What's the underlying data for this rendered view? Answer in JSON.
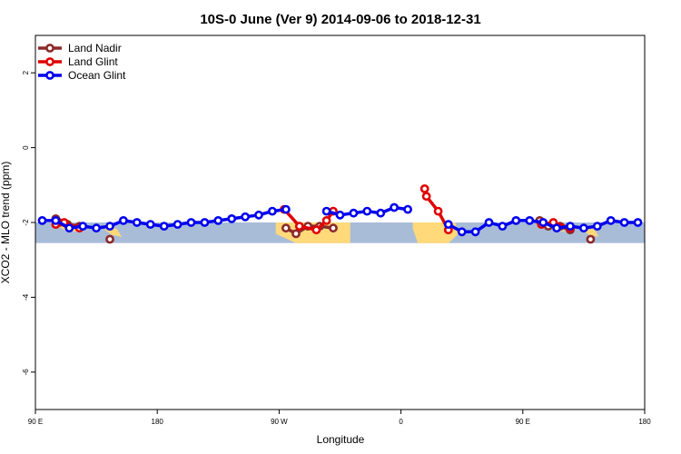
{
  "chart_data": {
    "type": "line",
    "title": "10S-0 June (Ver 9)   2014-09-06 to 2018-12-31",
    "xlabel": "Longitude",
    "ylabel": "XCO2 - MLO trend (ppm)",
    "xlim": [
      90,
      450
    ],
    "ylim": [
      -7,
      3
    ],
    "x_ticks": [
      {
        "value": 90,
        "label": "90 E"
      },
      {
        "value": 162,
        "label": "180"
      },
      {
        "value": 234,
        "label": "90 W"
      },
      {
        "value": 306,
        "label": "0"
      },
      {
        "value": 378,
        "label": "90 E"
      },
      {
        "value": 450,
        "label": "180"
      }
    ],
    "y_ticks": [
      {
        "value": 2,
        "label": "2"
      },
      {
        "value": 0,
        "label": "0"
      },
      {
        "value": -2,
        "label": "-2"
      },
      {
        "value": -4,
        "label": "-4"
      },
      {
        "value": -6,
        "label": "-6"
      }
    ],
    "legend_position": "top-left",
    "grid": false,
    "background_band": {
      "ymin": -2.55,
      "ymax": -2.0,
      "ocean_color": "#a8bcd8",
      "land_color": "#ffd97a"
    },
    "series": [
      {
        "name": "Land Nadir",
        "color": "#8b2a2a",
        "segments": [
          [
            [
              102,
              -1.9
            ],
            [
              104,
              -2.0
            ],
            [
              109,
              -2.05
            ],
            [
              116,
              -2.1
            ]
          ],
          [
            [
              134,
              -2.45
            ]
          ],
          [
            [
              238,
              -2.15
            ],
            [
              244,
              -2.3
            ],
            [
              251,
              -2.1
            ],
            [
              258,
              -2.1
            ],
            [
              266,
              -2.15
            ]
          ],
          [
            [
              388,
              -1.95
            ],
            [
              393,
              -2.1
            ],
            [
              400,
              -2.1
            ],
            [
              406,
              -2.2
            ]
          ],
          [
            [
              418,
              -2.45
            ]
          ]
        ]
      },
      {
        "name": "Land Glint",
        "color": "#e00000",
        "segments": [
          [
            [
              102,
              -2.05
            ],
            [
              107,
              -2.0
            ],
            [
              116,
              -2.15
            ]
          ],
          [
            [
              237,
              -1.65
            ],
            [
              246,
              -2.1
            ],
            [
              256,
              -2.2
            ],
            [
              262,
              -1.95
            ],
            [
              266,
              -1.7
            ]
          ],
          [
            [
              320,
              -1.1
            ],
            [
              321,
              -1.3
            ],
            [
              328,
              -1.7
            ],
            [
              334,
              -2.2
            ]
          ],
          [
            [
              389,
              -2.05
            ],
            [
              396,
              -2.0
            ],
            [
              406,
              -2.15
            ]
          ]
        ]
      },
      {
        "name": "Ocean Glint",
        "color": "#0000ee",
        "segments": [
          [
            [
              94,
              -1.95
            ],
            [
              102,
              -1.95
            ],
            [
              110,
              -2.15
            ],
            [
              118,
              -2.1
            ],
            [
              126,
              -2.15
            ],
            [
              134,
              -2.1
            ],
            [
              142,
              -1.95
            ],
            [
              150,
              -2.0
            ],
            [
              158,
              -2.05
            ],
            [
              166,
              -2.1
            ],
            [
              174,
              -2.05
            ],
            [
              182,
              -2.0
            ],
            [
              190,
              -2.0
            ],
            [
              198,
              -1.95
            ],
            [
              206,
              -1.9
            ],
            [
              214,
              -1.85
            ],
            [
              222,
              -1.8
            ],
            [
              230,
              -1.7
            ],
            [
              238,
              -1.65
            ]
          ],
          [
            [
              262,
              -1.7
            ],
            [
              270,
              -1.8
            ],
            [
              278,
              -1.75
            ],
            [
              286,
              -1.7
            ],
            [
              294,
              -1.75
            ],
            [
              302,
              -1.6
            ],
            [
              310,
              -1.65
            ]
          ],
          [
            [
              334,
              -2.05
            ],
            [
              342,
              -2.25
            ],
            [
              350,
              -2.25
            ],
            [
              358,
              -2.0
            ],
            [
              366,
              -2.1
            ],
            [
              374,
              -1.95
            ],
            [
              382,
              -1.95
            ],
            [
              390,
              -2.0
            ],
            [
              398,
              -2.15
            ],
            [
              406,
              -2.1
            ],
            [
              414,
              -2.15
            ],
            [
              422,
              -2.1
            ],
            [
              430,
              -1.95
            ],
            [
              438,
              -2.0
            ],
            [
              446,
              -2.0
            ]
          ]
        ]
      }
    ]
  }
}
